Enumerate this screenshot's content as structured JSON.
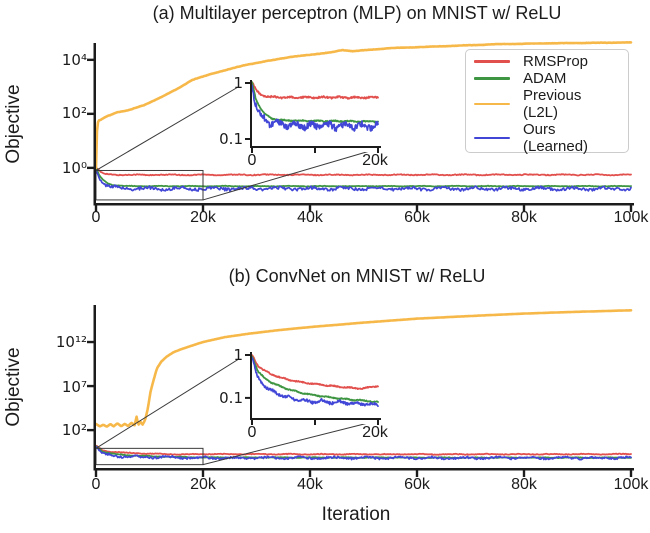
{
  "figure": {
    "background": "#ffffff"
  },
  "legend": {
    "items": [
      {
        "label": "RMSProp",
        "color": "#e2504d"
      },
      {
        "label": "ADAM",
        "color": "#3f9642"
      },
      {
        "label": "Previous (L2L)",
        "color": "#f7b84a"
      },
      {
        "label": "Ours (Learned)",
        "color": "#4146d7"
      }
    ]
  },
  "chart_data": [
    {
      "id": "mlp",
      "type": "line",
      "title": "(a) Multilayer perceptron (MLP) on MNIST w/ ReLU",
      "ylabel": "Objective",
      "xlabel": "",
      "xscale": "linear",
      "yscale": "log",
      "xlim": [
        0,
        100000
      ],
      "ylim": [
        0.05,
        42000
      ],
      "xticks": [
        {
          "v": 0,
          "label": "0"
        },
        {
          "v": 20000,
          "label": "20k"
        },
        {
          "v": 40000,
          "label": "40k"
        },
        {
          "v": 60000,
          "label": "60k"
        },
        {
          "v": 80000,
          "label": "80k"
        },
        {
          "v": 100000,
          "label": "100k"
        }
      ],
      "yticks": [
        {
          "v": 10000,
          "label": "10⁴"
        },
        {
          "v": 100,
          "label": "10²"
        },
        {
          "v": 1,
          "label": "10⁰"
        }
      ],
      "zoom_box": {
        "x": [
          0,
          20000
        ],
        "y": [
          0.065,
          0.8
        ]
      },
      "series": [
        {
          "name": "RMSProp",
          "color": "#e2504d",
          "width": 1.8,
          "noise": 0.02,
          "points": [
            [
              0,
              1.05
            ],
            [
              800,
              0.7
            ],
            [
              1600,
              0.6
            ],
            [
              2600,
              0.565
            ],
            [
              4000,
              0.555
            ],
            [
              8000,
              0.55
            ],
            [
              15000,
              0.55
            ],
            [
              30000,
              0.555
            ],
            [
              50000,
              0.55
            ],
            [
              70000,
              0.555
            ],
            [
              100000,
              0.555
            ]
          ]
        },
        {
          "name": "ADAM",
          "color": "#3f9642",
          "width": 1.8,
          "noise": 0.012,
          "points": [
            [
              0,
              1.05
            ],
            [
              600,
              0.52
            ],
            [
              1300,
              0.36
            ],
            [
              2200,
              0.27
            ],
            [
              3200,
              0.23
            ],
            [
              5000,
              0.215
            ],
            [
              10000,
              0.21
            ],
            [
              100000,
              0.21
            ]
          ]
        },
        {
          "name": "Ours (Learned)",
          "color": "#4146d7",
          "width": 1.7,
          "noise": 0.07,
          "points": [
            [
              0,
              0.95
            ],
            [
              600,
              0.42
            ],
            [
              1200,
              0.28
            ],
            [
              2200,
              0.21
            ],
            [
              3600,
              0.185
            ],
            [
              6000,
              0.175
            ],
            [
              12000,
              0.17
            ],
            [
              100000,
              0.17
            ]
          ]
        },
        {
          "name": "Previous (L2L)",
          "color": "#f7b84a",
          "width": 2.6,
          "noise": 0.006,
          "points": [
            [
              0,
              1.0
            ],
            [
              150,
              20
            ],
            [
              400,
              55
            ],
            [
              1000,
              62
            ],
            [
              2000,
              80
            ],
            [
              4000,
              115
            ],
            [
              6000,
              135
            ],
            [
              9000,
              210
            ],
            [
              12000,
              400
            ],
            [
              15000,
              800
            ],
            [
              18000,
              1800
            ],
            [
              22000,
              3200
            ],
            [
              28000,
              6500
            ],
            [
              36000,
              12500
            ],
            [
              44000,
              19000
            ],
            [
              46000,
              23000
            ],
            [
              48000,
              21000
            ],
            [
              55000,
              27000
            ],
            [
              65000,
              32000
            ],
            [
              75000,
              38000
            ],
            [
              85000,
              41000
            ],
            [
              100000,
              44000
            ]
          ]
        }
      ],
      "inset": {
        "xlim": [
          0,
          20000
        ],
        "ylim": [
          0.075,
          1.0
        ],
        "xticks": [
          {
            "v": 0,
            "label": "0"
          },
          {
            "v": 10000,
            "label": ""
          },
          {
            "v": 20000,
            "label": "20k"
          }
        ],
        "yticks": [
          {
            "v": 1,
            "label": "1"
          },
          {
            "v": 0.1,
            "label": "0.1"
          }
        ],
        "series": [
          {
            "name": "RMSProp",
            "color": "#e2504d",
            "width": 1.8,
            "noise": 0.018,
            "points": [
              [
                0,
                1.05
              ],
              [
                800,
                0.7
              ],
              [
                1600,
                0.6
              ],
              [
                2600,
                0.565
              ],
              [
                4000,
                0.555
              ],
              [
                8000,
                0.55
              ],
              [
                12000,
                0.555
              ],
              [
                16000,
                0.55
              ],
              [
                20000,
                0.555
              ]
            ]
          },
          {
            "name": "ADAM",
            "color": "#3f9642",
            "width": 1.8,
            "noise": 0.012,
            "points": [
              [
                0,
                1.05
              ],
              [
                600,
                0.52
              ],
              [
                1300,
                0.36
              ],
              [
                2200,
                0.27
              ],
              [
                3200,
                0.23
              ],
              [
                5000,
                0.215
              ],
              [
                10000,
                0.21
              ],
              [
                20000,
                0.205
              ]
            ]
          },
          {
            "name": "Ours (Learned)",
            "color": "#4146d7",
            "width": 1.7,
            "noise": 0.07,
            "points": [
              [
                0,
                0.95
              ],
              [
                600,
                0.42
              ],
              [
                1200,
                0.28
              ],
              [
                2200,
                0.21
              ],
              [
                3600,
                0.185
              ],
              [
                6000,
                0.175
              ],
              [
                12000,
                0.17
              ],
              [
                20000,
                0.17
              ]
            ]
          }
        ]
      }
    },
    {
      "id": "convnet",
      "type": "line",
      "title": "(b) ConvNet on MNIST w/ ReLU",
      "ylabel": "Objective",
      "xlabel": "Iteration",
      "xscale": "linear",
      "yscale": "log",
      "xlim": [
        0,
        100000
      ],
      "ylim": [
        0.005,
        1.6e+16
      ],
      "xticks": [
        {
          "v": 0,
          "label": "0"
        },
        {
          "v": 20000,
          "label": "20k"
        },
        {
          "v": 40000,
          "label": "40k"
        },
        {
          "v": 60000,
          "label": "60k"
        },
        {
          "v": 80000,
          "label": "80k"
        },
        {
          "v": 100000,
          "label": "100k"
        }
      ],
      "yticks": [
        {
          "v": 1000000000000.0,
          "label": "10¹²"
        },
        {
          "v": 10000000.0,
          "label": "10⁷"
        },
        {
          "v": 100,
          "label": "10²"
        }
      ],
      "zoom_box": {
        "x": [
          0,
          20000
        ],
        "y": [
          0.012,
          0.85
        ]
      },
      "series": [
        {
          "name": "RMSProp",
          "color": "#e2504d",
          "width": 1.8,
          "noise": 0.05,
          "points": [
            [
              0,
              1.7
            ],
            [
              1200,
              0.5
            ],
            [
              3000,
              0.34
            ],
            [
              6000,
              0.26
            ],
            [
              10000,
              0.21
            ],
            [
              14000,
              0.185
            ],
            [
              17000,
              0.17
            ],
            [
              20000,
              0.19
            ],
            [
              30000,
              0.185
            ],
            [
              50000,
              0.18
            ],
            [
              70000,
              0.18
            ],
            [
              100000,
              0.19
            ]
          ]
        },
        {
          "name": "ADAM",
          "color": "#3f9642",
          "width": 1.8,
          "noise": 0.04,
          "points": [
            [
              0,
              1.6
            ],
            [
              1200,
              0.36
            ],
            [
              3000,
              0.21
            ],
            [
              6000,
              0.14
            ],
            [
              10000,
              0.11
            ],
            [
              15000,
              0.09
            ],
            [
              20000,
              0.08
            ],
            [
              40000,
              0.078
            ],
            [
              70000,
              0.075
            ],
            [
              100000,
              0.075
            ]
          ]
        },
        {
          "name": "Ours (Learned)",
          "color": "#4146d7",
          "width": 1.7,
          "noise": 0.15,
          "points": [
            [
              0,
              1.5
            ],
            [
              900,
              0.28
            ],
            [
              2000,
              0.17
            ],
            [
              3500,
              0.125
            ],
            [
              6000,
              0.095
            ],
            [
              9000,
              0.082
            ],
            [
              12000,
              0.085
            ],
            [
              16000,
              0.074
            ],
            [
              20000,
              0.07
            ],
            [
              40000,
              0.07
            ],
            [
              70000,
              0.068
            ],
            [
              100000,
              0.07
            ]
          ]
        },
        {
          "name": "Previous (L2L)",
          "color": "#f7b84a",
          "width": 2.6,
          "noise": 0.004,
          "points": [
            [
              0,
              500
            ],
            [
              700,
              260
            ],
            [
              1400,
              420
            ],
            [
              2000,
              240
            ],
            [
              2700,
              500
            ],
            [
              3300,
              260
            ],
            [
              4000,
              600
            ],
            [
              4700,
              270
            ],
            [
              5400,
              520
            ],
            [
              6000,
              280
            ],
            [
              6600,
              700
            ],
            [
              7200,
              320
            ],
            [
              7600,
              3500
            ],
            [
              7900,
              380
            ],
            [
              8300,
              900
            ],
            [
              8700,
              420
            ],
            [
              9200,
              1500
            ],
            [
              9700,
              30000
            ],
            [
              10200,
              2500000
            ],
            [
              10800,
              60000000
            ],
            [
              11400,
              1000000000.0
            ],
            [
              12200,
              6000000000.0
            ],
            [
              13200,
              22000000000.0
            ],
            [
              14500,
              70000000000.0
            ],
            [
              16000,
              160000000000.0
            ],
            [
              18000,
              400000000000.0
            ],
            [
              20000,
              1000000000000.0
            ],
            [
              24000,
              3500000000000.0
            ],
            [
              28000,
              8000000000000.0
            ],
            [
              34000,
              22000000000000.0
            ],
            [
              40000,
              50000000000000.0
            ],
            [
              50000,
              160000000000000.0
            ],
            [
              60000,
              450000000000000.0
            ],
            [
              70000,
              900000000000000.0
            ],
            [
              80000,
              1700000000000000.0
            ],
            [
              90000,
              2700000000000000.0
            ],
            [
              100000,
              4000000000000000.0
            ]
          ]
        }
      ],
      "inset": {
        "xlim": [
          0,
          20000
        ],
        "ylim": [
          0.034,
          1.0
        ],
        "xticks": [
          {
            "v": 0,
            "label": "0"
          },
          {
            "v": 10000,
            "label": ""
          },
          {
            "v": 20000,
            "label": "20k"
          }
        ],
        "yticks": [
          {
            "v": 1,
            "label": "1"
          },
          {
            "v": 0.1,
            "label": "0.1"
          }
        ],
        "series": [
          {
            "name": "RMSProp",
            "color": "#e2504d",
            "width": 1.8,
            "noise": 0.015,
            "points": [
              [
                0,
                1.0
              ],
              [
                1000,
                0.55
              ],
              [
                2000,
                0.43
              ],
              [
                3000,
                0.36
              ],
              [
                4500,
                0.3
              ],
              [
                6000,
                0.26
              ],
              [
                8000,
                0.23
              ],
              [
                10000,
                0.21
              ],
              [
                12000,
                0.195
              ],
              [
                14000,
                0.18
              ],
              [
                16000,
                0.17
              ],
              [
                17500,
                0.165
              ],
              [
                19000,
                0.18
              ],
              [
                20000,
                0.19
              ]
            ]
          },
          {
            "name": "ADAM",
            "color": "#3f9642",
            "width": 1.8,
            "noise": 0.015,
            "points": [
              [
                0,
                0.95
              ],
              [
                1000,
                0.4
              ],
              [
                2000,
                0.29
              ],
              [
                3000,
                0.23
              ],
              [
                4500,
                0.185
              ],
              [
                6000,
                0.155
              ],
              [
                8000,
                0.13
              ],
              [
                10000,
                0.115
              ],
              [
                12000,
                0.105
              ],
              [
                14000,
                0.097
              ],
              [
                16000,
                0.09
              ],
              [
                18000,
                0.086
              ],
              [
                20000,
                0.08
              ]
            ]
          },
          {
            "name": "Ours (Learned)",
            "color": "#4146d7",
            "width": 1.7,
            "noise": 0.04,
            "points": [
              [
                0,
                0.9
              ],
              [
                800,
                0.32
              ],
              [
                1600,
                0.22
              ],
              [
                2500,
                0.165
              ],
              [
                3500,
                0.135
              ],
              [
                5000,
                0.11
              ],
              [
                6500,
                0.095
              ],
              [
                8000,
                0.087
              ],
              [
                9500,
                0.08
              ],
              [
                11000,
                0.086
              ],
              [
                12500,
                0.078
              ],
              [
                14000,
                0.08
              ],
              [
                16000,
                0.074
              ],
              [
                18000,
                0.073
              ],
              [
                20000,
                0.068
              ]
            ]
          }
        ]
      }
    }
  ]
}
